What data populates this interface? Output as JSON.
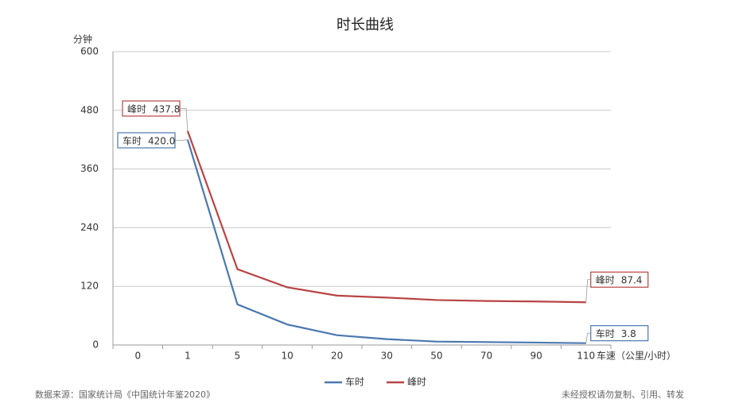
{
  "chart_data": {
    "type": "line",
    "title": "时长曲线",
    "y_label": "分钟",
    "x_label": "车速（公里/小时）",
    "categories": [
      "0",
      "1",
      "5",
      "10",
      "20",
      "30",
      "50",
      "70",
      "90",
      "110"
    ],
    "series": [
      {
        "name": "车时",
        "color": "#4a78b0",
        "values": [
          null,
          420.0,
          83,
          42,
          20,
          12,
          7,
          6,
          5,
          3.8
        ],
        "value_labels": [
          null,
          "420.0",
          null,
          null,
          null,
          null,
          null,
          null,
          null,
          "3.8"
        ]
      },
      {
        "name": "峰时",
        "color": "#b84444",
        "values": [
          null,
          437.8,
          155,
          118,
          101,
          97,
          92,
          90,
          89,
          87.4
        ],
        "value_labels": [
          null,
          "437.8",
          null,
          null,
          null,
          null,
          null,
          null,
          null,
          "87.4"
        ]
      }
    ],
    "ylim": [
      0,
      600
    ],
    "yticks": [
      0,
      120,
      240,
      360,
      480,
      600
    ],
    "grid": true,
    "source": "数据来源：国家统计局《中国统计年鉴2020》",
    "notice": "未经授权请勿复制、引用、转发"
  }
}
